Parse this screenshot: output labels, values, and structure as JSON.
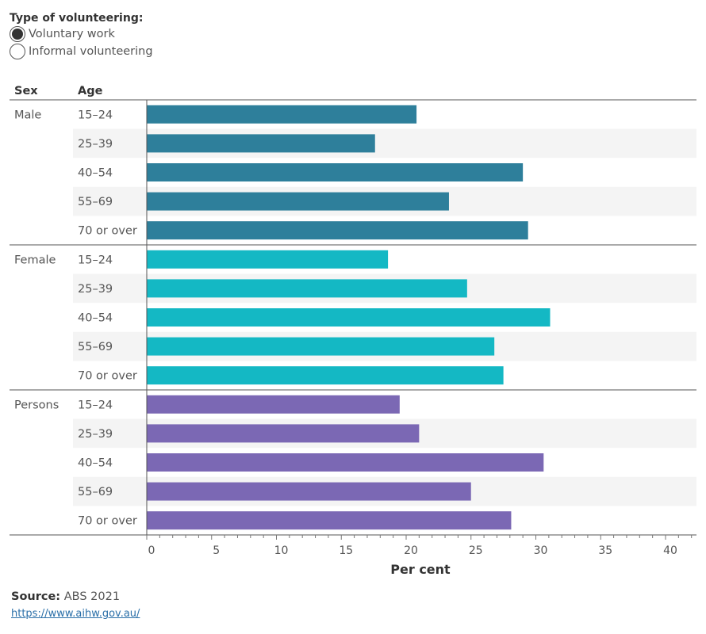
{
  "filter": {
    "title": "Type of volunteering:",
    "options": [
      {
        "label": "Voluntary work",
        "selected": true
      },
      {
        "label": "Informal volunteering",
        "selected": false
      }
    ]
  },
  "columns": {
    "sex": "Sex",
    "age": "Age"
  },
  "chart_data": {
    "type": "bar",
    "orientation": "horizontal",
    "xlabel": "Per cent",
    "xlim": [
      0,
      42
    ],
    "xticks": [
      0,
      5,
      10,
      15,
      20,
      25,
      30,
      35,
      40
    ],
    "series": [
      {
        "name": "Male",
        "color": "#2e7f9b",
        "categories": [
          "15–24",
          "25–39",
          "40–54",
          "55–69",
          "70 or over"
        ],
        "values": [
          20.8,
          17.6,
          29.0,
          23.3,
          29.4
        ]
      },
      {
        "name": "Female",
        "color": "#14b8c4",
        "categories": [
          "15–24",
          "25–39",
          "40–54",
          "55–69",
          "70 or over"
        ],
        "values": [
          18.6,
          24.7,
          31.1,
          26.8,
          27.5
        ]
      },
      {
        "name": "Persons",
        "color": "#7b68b4",
        "categories": [
          "15–24",
          "25–39",
          "40–54",
          "55–69",
          "70 or over"
        ],
        "values": [
          19.5,
          21.0,
          30.6,
          25.0,
          28.1
        ]
      }
    ]
  },
  "source": {
    "label": "Source:",
    "text": " ABS 2021",
    "url": "https://www.aihw.gov.au/"
  }
}
